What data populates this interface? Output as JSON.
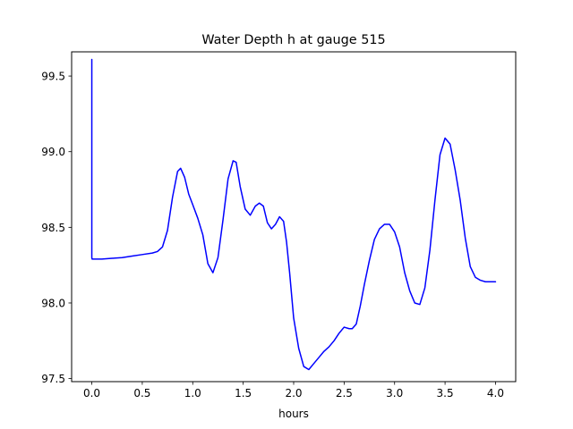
{
  "chart_data": {
    "type": "line",
    "title": "Water Depth h at gauge 515",
    "xlabel": "hours",
    "ylabel": "",
    "xlim": [
      -0.2,
      4.2
    ],
    "ylim": [
      97.48,
      99.66
    ],
    "grid": false,
    "x_ticks": [
      0.0,
      0.5,
      1.0,
      1.5,
      2.0,
      2.5,
      3.0,
      3.5,
      4.0
    ],
    "x_tick_labels": [
      "0.0",
      "0.5",
      "1.0",
      "1.5",
      "2.0",
      "2.5",
      "3.0",
      "3.5",
      "4.0"
    ],
    "y_ticks": [
      97.5,
      98.0,
      98.5,
      99.0,
      99.5
    ],
    "y_tick_labels": [
      "97.5",
      "98.0",
      "98.5",
      "99.0",
      "99.5"
    ],
    "colors": {
      "line": "#0000ff",
      "axes": "#000000",
      "background": "#ffffff"
    },
    "series": [
      {
        "x": [
          0.0,
          0.0,
          0.003,
          0.1,
          0.2,
          0.3,
          0.4,
          0.5,
          0.6,
          0.65,
          0.7,
          0.75,
          0.8,
          0.85,
          0.88,
          0.92,
          0.96,
          1.0,
          1.05,
          1.1,
          1.15,
          1.2,
          1.25,
          1.3,
          1.35,
          1.4,
          1.43,
          1.47,
          1.52,
          1.57,
          1.62,
          1.66,
          1.7,
          1.74,
          1.78,
          1.82,
          1.86,
          1.9,
          1.93,
          1.96,
          2.0,
          2.05,
          2.1,
          2.15,
          2.2,
          2.25,
          2.3,
          2.35,
          2.4,
          2.45,
          2.5,
          2.55,
          2.58,
          2.62,
          2.66,
          2.7,
          2.75,
          2.8,
          2.85,
          2.9,
          2.95,
          3.0,
          3.05,
          3.1,
          3.15,
          3.2,
          3.25,
          3.3,
          3.35,
          3.4,
          3.45,
          3.5,
          3.55,
          3.6,
          3.65,
          3.7,
          3.75,
          3.8,
          3.85,
          3.9,
          3.95,
          4.0
        ],
        "values": [
          99.61,
          98.3,
          98.29,
          98.29,
          98.295,
          98.3,
          98.31,
          98.32,
          98.33,
          98.34,
          98.37,
          98.48,
          98.7,
          98.87,
          98.89,
          98.83,
          98.72,
          98.65,
          98.56,
          98.45,
          98.26,
          98.2,
          98.3,
          98.55,
          98.82,
          98.94,
          98.93,
          98.77,
          98.62,
          98.58,
          98.64,
          98.66,
          98.64,
          98.53,
          98.49,
          98.52,
          98.57,
          98.54,
          98.4,
          98.2,
          97.9,
          97.7,
          97.58,
          97.56,
          97.6,
          97.64,
          97.68,
          97.71,
          97.75,
          97.8,
          97.84,
          97.83,
          97.83,
          97.86,
          97.98,
          98.12,
          98.28,
          98.42,
          98.49,
          98.52,
          98.52,
          98.47,
          98.37,
          98.2,
          98.08,
          98.0,
          97.99,
          98.1,
          98.35,
          98.68,
          98.98,
          99.09,
          99.05,
          98.88,
          98.68,
          98.43,
          98.24,
          98.17,
          98.15,
          98.14,
          98.14,
          98.14
        ]
      }
    ]
  }
}
